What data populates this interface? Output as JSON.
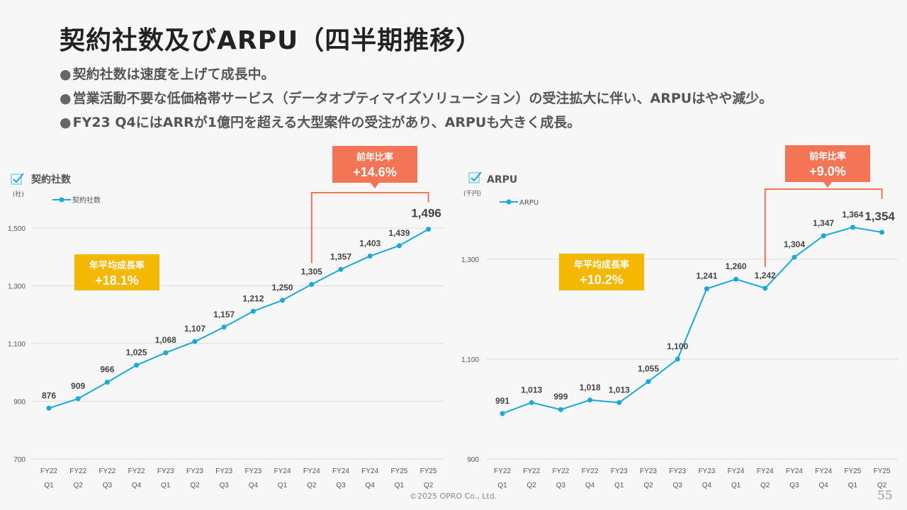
{
  "slide": {
    "title": "契約社数及びARPU（四半期推移）",
    "bullets": [
      "契約社数は速度を上げて成長中。",
      "営業活動不要な低価格帯サービス（データオプティマイズソリューション）の受注拡大に伴い、ARPUはやや減少。",
      "FY23 Q4にはARRが1億円を超える大型案件の受注があり、ARPUも大きく成長。"
    ],
    "bullet_mark": "●",
    "footer": "©2025 OPRO Co., Ltd.",
    "page_number": "55"
  },
  "colors": {
    "line": "#1aa9d8",
    "callout_red": "#f47456",
    "callout_yellow": "#f5b800",
    "grid": "#dddddd",
    "axis_text": "#555555"
  },
  "chart_data": [
    {
      "type": "line",
      "title": "契約社数",
      "unit": "(社)",
      "legend": "契約社数",
      "ylim": [
        700,
        1600
      ],
      "yticks": [
        700,
        900,
        1100,
        1300,
        1500
      ],
      "ytick_labels": [
        "700",
        "900",
        "1,100",
        "1,300",
        "1,500"
      ],
      "categories": [
        [
          "FY22",
          "Q1"
        ],
        [
          "FY22",
          "Q2"
        ],
        [
          "FY22",
          "Q3"
        ],
        [
          "FY22",
          "Q4"
        ],
        [
          "FY23",
          "Q1"
        ],
        [
          "FY23",
          "Q2"
        ],
        [
          "FY23",
          "Q3"
        ],
        [
          "FY23",
          "Q4"
        ],
        [
          "FY24",
          "Q1"
        ],
        [
          "FY24",
          "Q2"
        ],
        [
          "FY24",
          "Q3"
        ],
        [
          "FY24",
          "Q4"
        ],
        [
          "FY25",
          "Q1"
        ],
        [
          "FY25",
          "Q2"
        ]
      ],
      "values": [
        876,
        909,
        966,
        1025,
        1068,
        1107,
        1157,
        1212,
        1250,
        1305,
        1357,
        1403,
        1439,
        1496
      ],
      "value_labels": [
        "876",
        "909",
        "966",
        "1,025",
        "1,068",
        "1,107",
        "1,157",
        "1,212",
        "1,250",
        "1,305",
        "1,357",
        "1,403",
        "1,439",
        "1,496"
      ],
      "cagr_label": "年平均成長率",
      "cagr_value": "+18.1%",
      "yoy_label": "前年比率",
      "yoy_value": "+14.6%",
      "yoy_from_index": 9,
      "yoy_to_index": 13
    },
    {
      "type": "line",
      "title": "ARPU",
      "unit": "(千円)",
      "legend": "ARPU",
      "ylim": [
        900,
        1400
      ],
      "yticks": [
        900,
        1100,
        1300
      ],
      "ytick_labels": [
        "900",
        "1,100",
        "1,300"
      ],
      "categories": [
        [
          "FY22",
          "Q1"
        ],
        [
          "FY22",
          "Q2"
        ],
        [
          "FY22",
          "Q3"
        ],
        [
          "FY22",
          "Q4"
        ],
        [
          "FY23",
          "Q1"
        ],
        [
          "FY23",
          "Q2"
        ],
        [
          "FY23",
          "Q3"
        ],
        [
          "FY23",
          "Q4"
        ],
        [
          "FY24",
          "Q1"
        ],
        [
          "FY24",
          "Q2"
        ],
        [
          "FY24",
          "Q3"
        ],
        [
          "FY24",
          "Q4"
        ],
        [
          "FY25",
          "Q1"
        ],
        [
          "FY25",
          "Q2"
        ]
      ],
      "values": [
        991,
        1013,
        999,
        1018,
        1013,
        1055,
        1100,
        1241,
        1260,
        1242,
        1304,
        1347,
        1364,
        1354
      ],
      "value_labels": [
        "991",
        "1,013",
        "999",
        "1,018",
        "1,013",
        "1,055",
        "1,100",
        "1,241",
        "1,260",
        "1,242",
        "1,304",
        "1,347",
        "1,364",
        "1,354"
      ],
      "cagr_label": "年平均成長率",
      "cagr_value": "+10.2%",
      "yoy_label": "前年比率",
      "yoy_value": "+9.0%",
      "yoy_from_index": 9,
      "yoy_to_index": 13
    }
  ]
}
